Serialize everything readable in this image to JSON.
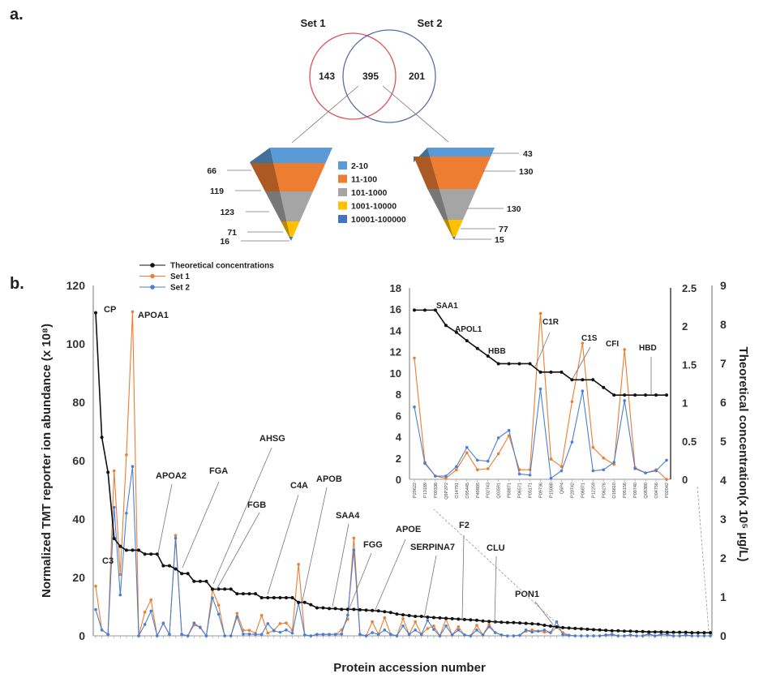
{
  "panel_a": {
    "label": "a.",
    "venn": {
      "set1_label": "Set 1",
      "set2_label": "Set 2",
      "set1_only": "143",
      "overlap": "395",
      "set2_only": "201",
      "set1_color": "#e0505a",
      "set2_color": "#5a6ea8"
    },
    "pyramid_legend": [
      "2-10",
      "11-100",
      "101-1000",
      "1001-10000",
      "10001-100000"
    ],
    "pyramid_colors": [
      "#5b9bd5",
      "#ed7d31",
      "#a5a5a5",
      "#ffc000",
      "#4472c4"
    ],
    "pyramid_left_values": [
      "66",
      "119",
      "123",
      "71",
      "16"
    ],
    "pyramid_right_values": [
      "43",
      "130",
      "130",
      "77",
      "15"
    ]
  },
  "panel_b": {
    "label": "b.",
    "legend": [
      "Theoretical concentrations",
      "Set 1",
      "Set 2"
    ],
    "colors": {
      "theoretical": "#111111",
      "set1": "#ed7d31",
      "set2": "#4a7fd6"
    }
  },
  "chart_data": [
    {
      "type": "line",
      "title": "",
      "xlabel": "Protein accession number",
      "ylabel": "Normalized TMT reporter ion abundance (x 10⁸)",
      "y2label": "Theoretical concentration(x 10⁵ µg/L)",
      "ylim": [
        0,
        120
      ],
      "yticks": [
        "0",
        "20",
        "40",
        "60",
        "80",
        "100",
        "120"
      ],
      "y2lim": [
        0,
        9
      ],
      "y2ticks": [
        "0",
        "1",
        "2",
        "3",
        "4",
        "5",
        "6",
        "7",
        "8",
        "9"
      ],
      "grid": false,
      "legend_position": "top-left",
      "series": [
        {
          "name": "Theoretical concentrations",
          "axis": "right",
          "values": [
            8.3,
            5.1,
            4.2,
            2.5,
            2.3,
            2.2,
            2.2,
            2.2,
            2.1,
            2.1,
            2.1,
            1.8,
            1.8,
            1.72,
            1.6,
            1.6,
            1.4,
            1.4,
            1.4,
            1.2,
            1.2,
            1.2,
            1.2,
            1.08,
            1.08,
            1.08,
            1.08,
            0.98,
            0.98,
            0.98,
            0.98,
            0.98,
            0.98,
            0.86,
            0.86,
            0.8,
            0.72,
            0.72,
            0.7,
            0.7,
            0.68,
            0.68,
            0.68,
            0.67,
            0.66,
            0.65,
            0.64,
            0.62,
            0.6,
            0.56,
            0.54,
            0.52,
            0.5,
            0.5,
            0.48,
            0.47,
            0.46,
            0.45,
            0.44,
            0.43,
            0.42,
            0.41,
            0.4,
            0.38,
            0.37,
            0.36,
            0.35,
            0.34,
            0.34,
            0.33,
            0.32,
            0.31,
            0.3,
            0.27,
            0.25,
            0.23,
            0.21,
            0.2,
            0.19,
            0.18,
            0.17,
            0.16,
            0.15,
            0.14,
            0.13,
            0.13,
            0.12,
            0.12,
            0.11,
            0.11,
            0.1,
            0.1,
            0.1,
            0.09,
            0.09,
            0.09,
            0.09,
            0.08,
            0.08,
            0.08,
            0.08
          ]
        },
        {
          "name": "Set 1",
          "axis": "left",
          "values": [
            17,
            2,
            0.5,
            56.5,
            21,
            62,
            111,
            0,
            8.1,
            12.3,
            0,
            4.2,
            0.5,
            34.4,
            0.5,
            0,
            3.7,
            3,
            0,
            15.7,
            10.5,
            0,
            0,
            7.7,
            1.9,
            1.9,
            0.9,
            7,
            0.9,
            1.9,
            4.2,
            4.4,
            1.9,
            24.5,
            0.3,
            0,
            0.5,
            0.5,
            0.5,
            0.5,
            2,
            5.7,
            33.5,
            0.5,
            0,
            4.8,
            0.5,
            6.2,
            0.5,
            0,
            5.9,
            0.5,
            4.8,
            0.5,
            2.5,
            3.4,
            0,
            5.7,
            0.3,
            3.1,
            0.3,
            0,
            3.6,
            0.3,
            3.9,
            1.1,
            0.3,
            0,
            0,
            0.2,
            1.6,
            2,
            1.6,
            1.3,
            1.1,
            3,
            1.1,
            0.2,
            0,
            0,
            0,
            0,
            0,
            0.2,
            0.5,
            0,
            0,
            0.2,
            0,
            0,
            0.8,
            0,
            0.5,
            0.5,
            0,
            0,
            0.2,
            0,
            0,
            0,
            0
          ]
        },
        {
          "name": "Set 2",
          "axis": "left",
          "values": [
            9,
            2,
            0.5,
            44,
            14,
            42,
            58,
            0,
            3.9,
            8.5,
            0,
            4.4,
            0.5,
            33.5,
            0.5,
            0,
            4.4,
            2.8,
            0,
            13,
            7.4,
            0,
            0,
            6.5,
            0.6,
            0.6,
            0.5,
            0.5,
            4.2,
            1.7,
            1.2,
            2,
            0.9,
            11.3,
            0.3,
            0,
            0.5,
            0.5,
            0.5,
            0.5,
            0.6,
            7.1,
            29.4,
            0.5,
            0,
            1.1,
            0.5,
            2,
            0.5,
            0,
            3.4,
            0.5,
            2,
            0.5,
            5.3,
            2.2,
            0,
            3.4,
            0.3,
            2,
            0.3,
            0,
            2,
            0.3,
            3.1,
            1.1,
            0.3,
            0,
            0,
            0.2,
            2,
            1.3,
            1.6,
            2,
            1.1,
            4.8,
            0.4,
            0.2,
            0,
            0,
            0,
            0,
            0,
            0.3,
            0.5,
            0,
            0,
            0.3,
            0,
            0,
            0.6,
            0,
            0.5,
            0.4,
            0,
            0,
            0.3,
            0,
            0,
            0,
            0
          ]
        }
      ],
      "annotations": [
        {
          "text": "CP",
          "index": 0
        },
        {
          "text": "APOA1",
          "index": 6
        },
        {
          "text": "C3",
          "index": 3
        },
        {
          "text": "APOA2",
          "index": 10
        },
        {
          "text": "FGA",
          "index": 14
        },
        {
          "text": "AHSG",
          "index": 19
        },
        {
          "text": "FGB",
          "index": 20
        },
        {
          "text": "C4A",
          "index": 28
        },
        {
          "text": "APOB",
          "index": 33
        },
        {
          "text": "SAA4",
          "index": 38
        },
        {
          "text": "FGG",
          "index": 41
        },
        {
          "text": "APOE",
          "index": 45
        },
        {
          "text": "SERPINA7",
          "index": 53
        },
        {
          "text": "F2",
          "index": 60
        },
        {
          "text": "CLU",
          "index": 65
        },
        {
          "text": "PON1",
          "index": 75
        }
      ]
    },
    {
      "type": "line",
      "title": "",
      "ylim": [
        0,
        18
      ],
      "yticks": [
        "0",
        "2",
        "4",
        "6",
        "8",
        "10",
        "12",
        "14",
        "16",
        "18"
      ],
      "y2lim": [
        0,
        2.5
      ],
      "y2ticks": [
        "0",
        "0.5",
        "1",
        "1.5",
        "2",
        "2.5"
      ],
      "grid": false,
      "categories": [
        "P29622",
        "P13189",
        "P00338",
        "Q9P2P2",
        "O14791",
        "O95445",
        "P49805",
        "P02743",
        "Q03591",
        "P68871",
        "P06571",
        "P05171",
        "P09736",
        "P15088",
        "Q6P4",
        "P20742",
        "P06871",
        "P12259",
        "P06276",
        "O16610",
        "P05156",
        "P00740",
        "Q08380",
        "O04756",
        "P02042"
      ],
      "series": [
        {
          "name": "Theoretical concentrations",
          "axis": "right",
          "values": [
            2.21,
            2.21,
            2.21,
            2.01,
            1.92,
            1.81,
            1.71,
            1.61,
            1.51,
            1.51,
            1.51,
            1.51,
            1.4,
            1.4,
            1.4,
            1.3,
            1.3,
            1.3,
            1.2,
            1.1,
            1.1,
            1.1,
            1.1,
            1.1,
            1.1
          ]
        },
        {
          "name": "Set 1",
          "axis": "left",
          "values": [
            11.4,
            1.6,
            0.3,
            0.1,
            0.9,
            2.5,
            0.9,
            1.0,
            2.4,
            4.1,
            0.9,
            0.9,
            15.6,
            1.9,
            1.2,
            7.3,
            12.8,
            3.0,
            2.0,
            1.4,
            12.2,
            1.1,
            0.6,
            0.9,
            0
          ]
        },
        {
          "name": "Set 2",
          "axis": "left",
          "values": [
            6.8,
            1.5,
            0.3,
            0.3,
            1.2,
            3.0,
            1.8,
            1.7,
            3.9,
            4.6,
            0.5,
            0.4,
            8.5,
            0.1,
            0.8,
            3.5,
            8.3,
            0.8,
            0.9,
            1.6,
            7.4,
            1.0,
            0.6,
            0.8,
            1.8
          ]
        }
      ],
      "annotations": [
        {
          "text": "SAA1",
          "index": 2
        },
        {
          "text": "APOL1",
          "index": 4
        },
        {
          "text": "HBB",
          "index": 7
        },
        {
          "text": "C1R",
          "index": 11
        },
        {
          "text": "C1S",
          "index": 15
        },
        {
          "text": "CFI",
          "index": 18
        },
        {
          "text": "HBD",
          "index": 23
        }
      ]
    }
  ]
}
